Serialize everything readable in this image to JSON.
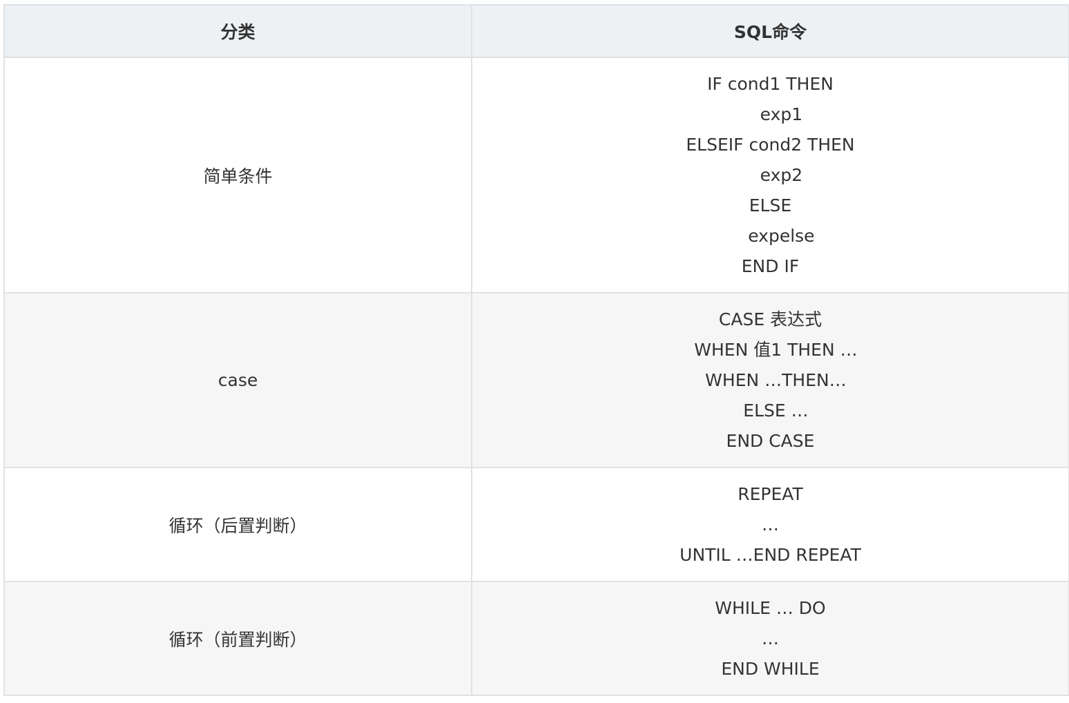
{
  "table": {
    "headers": [
      "分类",
      "SQL命令"
    ],
    "rows": [
      {
        "category": "简单条件",
        "lines": [
          "IF cond1 THEN",
          "    exp1",
          "ELSEIF cond2 THEN",
          "    exp2",
          "ELSE",
          "    expelse",
          "END IF"
        ]
      },
      {
        "category": "case",
        "lines": [
          "CASE 表达式",
          "  WHEN 值1 THEN …",
          "  WHEN …THEN…",
          "  ELSE …",
          "END CASE"
        ]
      },
      {
        "category": "循环（后置判断）",
        "lines": [
          "REPEAT",
          "…",
          "UNTIL …END REPEAT"
        ]
      },
      {
        "category": "循环（前置判断）",
        "lines": [
          "WHILE … DO",
          "…",
          "END WHILE"
        ]
      }
    ]
  }
}
